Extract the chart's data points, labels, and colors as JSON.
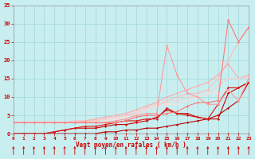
{
  "xlabel": "Vent moyen/en rafales ( km/h )",
  "xlim": [
    0,
    23
  ],
  "ylim": [
    0,
    35
  ],
  "xticks": [
    0,
    1,
    2,
    3,
    4,
    5,
    6,
    7,
    8,
    9,
    10,
    11,
    12,
    13,
    14,
    15,
    16,
    17,
    18,
    19,
    20,
    21,
    22,
    23
  ],
  "yticks": [
    0,
    5,
    10,
    15,
    20,
    25,
    30,
    35
  ],
  "bg_color": "#c8eef0",
  "grid_color": "#a0d8d8",
  "lines": [
    {
      "x": [
        0,
        1,
        2,
        3,
        4,
        5,
        6,
        7,
        8,
        9,
        10,
        11,
        12,
        13,
        14,
        15,
        16,
        17,
        18,
        19,
        20,
        21,
        22,
        23
      ],
      "y": [
        0,
        0,
        0,
        0,
        0,
        0,
        0,
        0,
        0,
        0,
        0,
        0,
        0,
        0,
        0,
        0,
        0,
        0,
        0,
        0,
        0,
        0,
        0,
        0
      ],
      "color": "#cc0000",
      "lw": 0.8,
      "marker": "D",
      "ms": 1.5
    },
    {
      "x": [
        0,
        1,
        2,
        3,
        4,
        5,
        6,
        7,
        8,
        9,
        10,
        11,
        12,
        13,
        14,
        15,
        16,
        17,
        18,
        19,
        20,
        21,
        22,
        23
      ],
      "y": [
        0,
        0,
        0,
        0,
        0,
        0,
        0,
        0,
        0,
        0.5,
        0.5,
        1,
        1,
        1.5,
        1.5,
        2,
        2.5,
        3,
        3.5,
        4,
        5,
        7,
        9,
        14
      ],
      "color": "#bb0000",
      "lw": 0.8,
      "marker": "D",
      "ms": 1.5
    },
    {
      "x": [
        0,
        1,
        2,
        3,
        4,
        5,
        6,
        7,
        8,
        9,
        10,
        11,
        12,
        13,
        14,
        15,
        16,
        17,
        18,
        19,
        20,
        21,
        22,
        23
      ],
      "y": [
        0,
        0,
        0,
        0,
        0.5,
        1,
        1.5,
        1.5,
        1.5,
        2,
        2.5,
        2.5,
        3,
        3.5,
        4.5,
        6.5,
        5.5,
        5.5,
        4.5,
        4,
        4,
        11,
        12.5,
        14
      ],
      "color": "#cc0000",
      "lw": 0.8,
      "marker": "D",
      "ms": 1.5
    },
    {
      "x": [
        0,
        1,
        2,
        3,
        4,
        5,
        6,
        7,
        8,
        9,
        10,
        11,
        12,
        13,
        14,
        15,
        16,
        17,
        18,
        19,
        20,
        21,
        22,
        23
      ],
      "y": [
        0,
        0,
        0,
        0,
        0.5,
        1,
        1.5,
        2,
        2,
        2.5,
        3,
        3.5,
        3.5,
        4,
        4,
        7,
        5.5,
        5,
        4.5,
        4,
        8,
        12.5,
        12.5,
        14
      ],
      "color": "#dd1111",
      "lw": 0.8,
      "marker": "D",
      "ms": 1.5
    },
    {
      "x": [
        0,
        1,
        2,
        3,
        4,
        5,
        6,
        7,
        8,
        9,
        10,
        11,
        12,
        13,
        14,
        15,
        16,
        17,
        18,
        19,
        20,
        21,
        22,
        23
      ],
      "y": [
        3,
        3,
        3,
        3,
        3,
        3,
        3.5,
        3.5,
        3.5,
        4,
        4.5,
        5,
        5.5,
        6.5,
        7.5,
        9,
        10,
        11,
        11,
        12,
        15,
        20,
        25,
        29
      ],
      "color": "#ffbbbb",
      "lw": 0.8,
      "marker": "D",
      "ms": 1.5
    },
    {
      "x": [
        0,
        1,
        2,
        3,
        4,
        5,
        6,
        7,
        8,
        9,
        10,
        11,
        12,
        13,
        14,
        15,
        16,
        17,
        18,
        19,
        20,
        21,
        22,
        23
      ],
      "y": [
        3,
        3,
        3,
        3,
        3,
        3,
        3,
        3.5,
        4,
        4.5,
        5,
        5.5,
        6.5,
        7.5,
        8.5,
        10,
        11,
        12,
        13,
        14,
        16,
        19,
        15,
        16
      ],
      "color": "#ffaaaa",
      "lw": 0.8,
      "marker": "D",
      "ms": 1.5
    },
    {
      "x": [
        0,
        1,
        2,
        3,
        4,
        5,
        6,
        7,
        8,
        9,
        10,
        11,
        12,
        13,
        14,
        15,
        16,
        17,
        18,
        19,
        20,
        21,
        22,
        23
      ],
      "y": [
        3,
        3,
        3,
        3,
        3,
        3,
        3,
        3,
        3.5,
        4,
        4.5,
        5,
        6,
        7,
        8,
        8.5,
        9,
        10,
        10,
        11,
        13,
        15,
        15,
        15.5
      ],
      "color": "#ffcccc",
      "lw": 0.8,
      "marker": "D",
      "ms": 1.5
    },
    {
      "x": [
        0,
        1,
        2,
        3,
        4,
        5,
        6,
        7,
        8,
        9,
        10,
        11,
        12,
        13,
        14,
        15,
        16,
        17,
        18,
        19,
        20,
        21,
        22,
        23
      ],
      "y": [
        3,
        3,
        3,
        3,
        3,
        3,
        3,
        3,
        3,
        3.5,
        4,
        4.5,
        5.5,
        6.5,
        7.5,
        8,
        8,
        9,
        10,
        11,
        11,
        12,
        9,
        15
      ],
      "color": "#ffdddd",
      "lw": 0.8,
      "marker": "D",
      "ms": 1.5
    },
    {
      "x": [
        0,
        1,
        2,
        3,
        4,
        5,
        6,
        7,
        8,
        9,
        10,
        11,
        12,
        13,
        14,
        15,
        16,
        17,
        18,
        19,
        20,
        21,
        22,
        23
      ],
      "y": [
        3,
        3,
        3,
        3,
        3,
        3,
        3,
        3,
        3,
        3,
        3.5,
        4,
        5,
        5.5,
        5.5,
        24,
        16,
        11,
        10,
        8,
        8,
        12,
        9,
        15
      ],
      "color": "#ff9999",
      "lw": 0.8,
      "marker": "D",
      "ms": 1.5
    },
    {
      "x": [
        0,
        1,
        2,
        3,
        4,
        5,
        6,
        7,
        8,
        9,
        10,
        11,
        12,
        13,
        14,
        15,
        16,
        17,
        18,
        19,
        20,
        21,
        22,
        23
      ],
      "y": [
        3,
        3,
        3,
        3,
        3,
        3,
        3,
        3,
        3,
        3,
        3,
        3.5,
        4.5,
        5,
        5,
        5.5,
        6,
        7.5,
        8.5,
        8.5,
        9,
        31,
        25,
        29
      ],
      "color": "#ff7777",
      "lw": 0.8,
      "marker": "D",
      "ms": 1.5
    }
  ],
  "tick_color": "#cc0000",
  "label_color": "#cc0000",
  "arrow_color": "#cc0000"
}
